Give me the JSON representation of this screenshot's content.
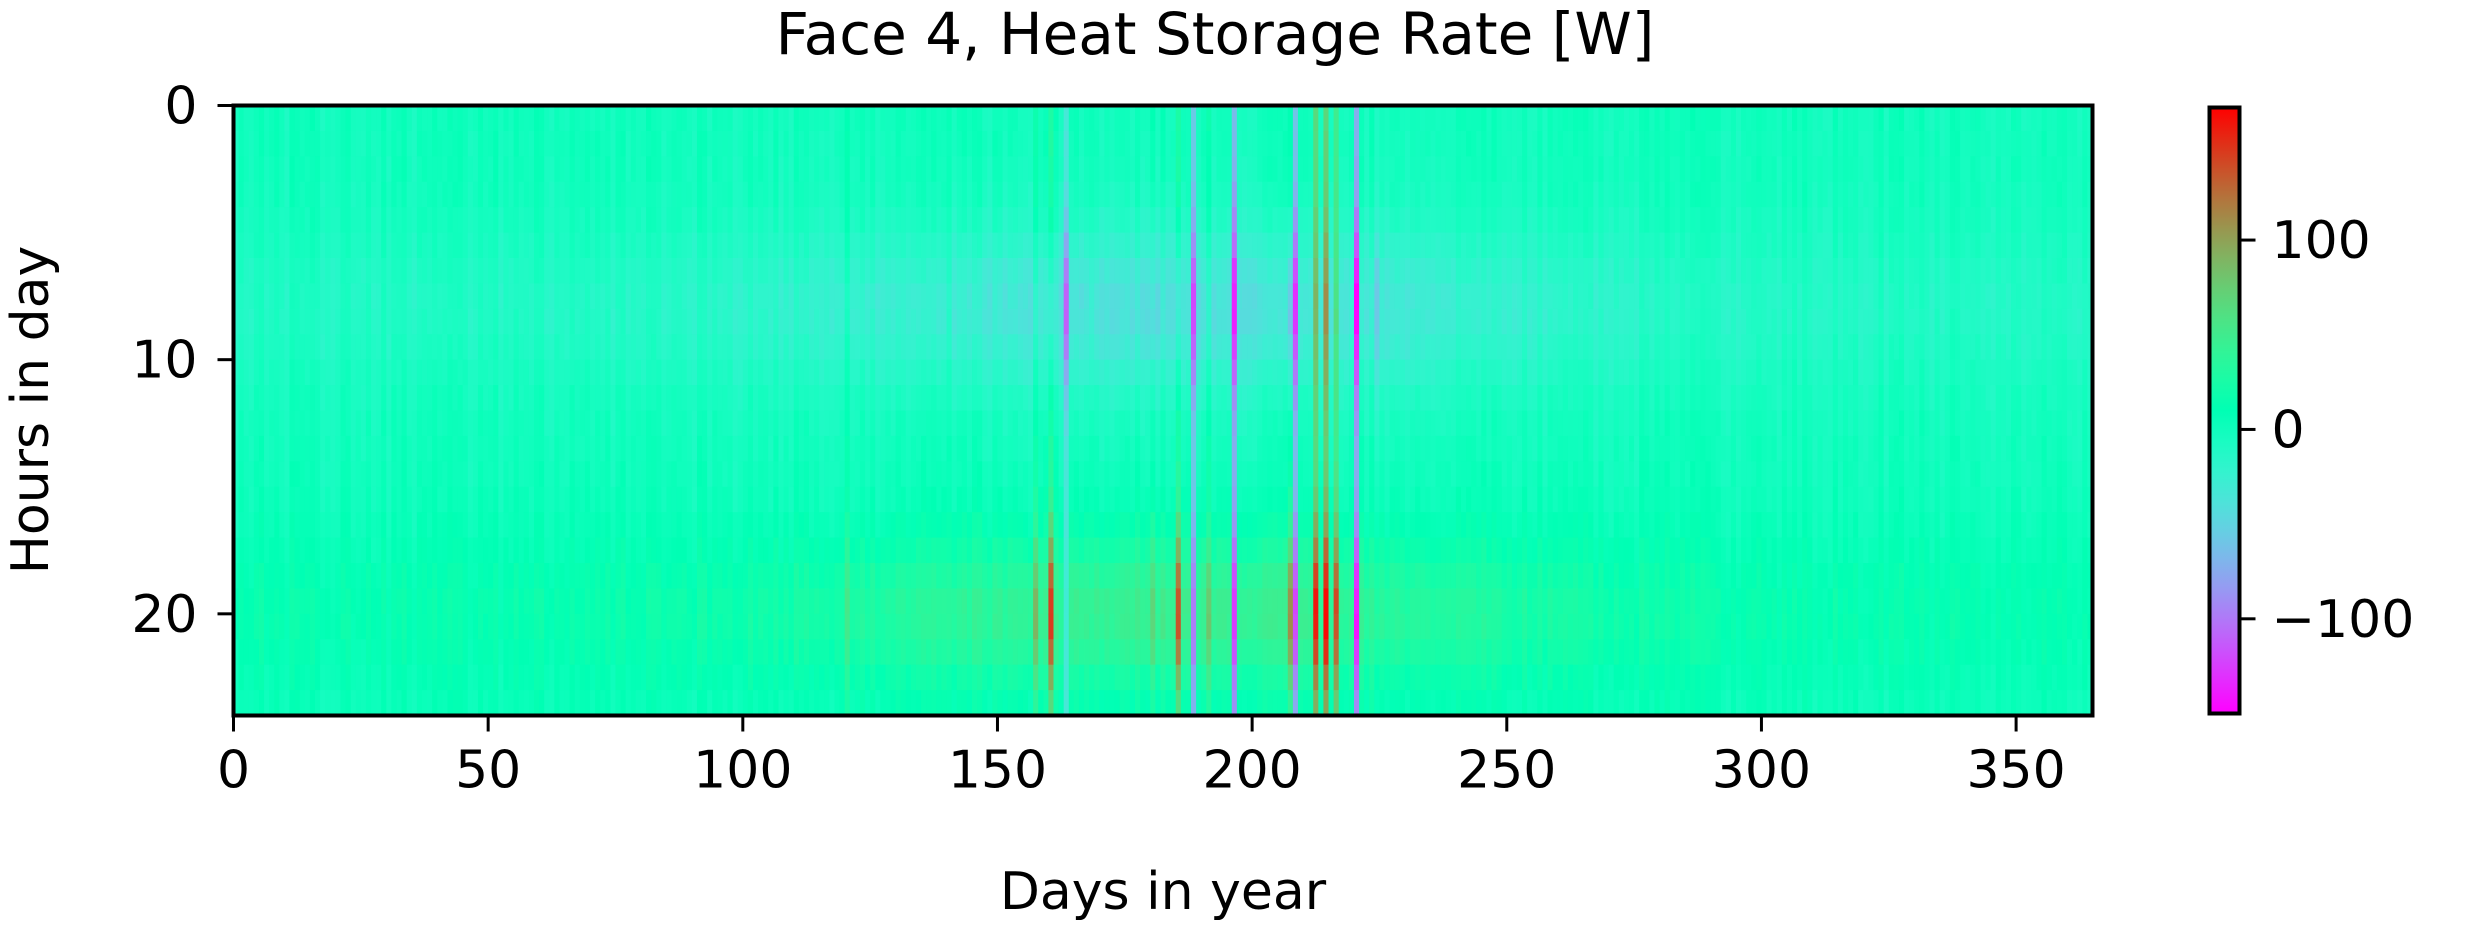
{
  "chart_data": {
    "type": "heatmap",
    "title": "Face 4, Heat Storage Rate [W]",
    "xlabel": "Days in year",
    "ylabel": "Hours in day",
    "xlim": [
      0,
      365
    ],
    "ylim": [
      0,
      24
    ],
    "y_inverted": true,
    "x_ticks": [
      0,
      50,
      100,
      150,
      200,
      250,
      300,
      350
    ],
    "y_ticks": [
      0,
      10,
      20
    ],
    "x_tick_labels": [
      "0",
      "50",
      "100",
      "150",
      "200",
      "250",
      "300",
      "350"
    ],
    "y_tick_labels": [
      "0",
      "10",
      "20"
    ],
    "colormap": "rainbow",
    "colorbar": {
      "range": [
        -150,
        170
      ],
      "ticks": [
        -100,
        0,
        100
      ],
      "tick_labels": [
        "−100",
        "0",
        "100"
      ]
    },
    "grid": false,
    "daily_events": [
      {
        "day": 120,
        "evening": 55,
        "morning": -5
      },
      {
        "day": 140,
        "evening": 35,
        "morning": -15
      },
      {
        "day": 157,
        "evening": 90,
        "morning": -20
      },
      {
        "day": 160,
        "evening": 150,
        "morning": -25
      },
      {
        "day": 163,
        "evening": -30,
        "morning": -110
      },
      {
        "day": 168,
        "evening": 40,
        "morning": -30
      },
      {
        "day": 180,
        "evening": 70,
        "morning": -40
      },
      {
        "day": 185,
        "evening": 140,
        "morning": -30
      },
      {
        "day": 188,
        "evening": -100,
        "morning": -120
      },
      {
        "day": 191,
        "evening": 80,
        "morning": -20
      },
      {
        "day": 196,
        "evening": -130,
        "morning": -140
      },
      {
        "day": 207,
        "evening": 110,
        "morning": -60
      },
      {
        "day": 208,
        "evening": -120,
        "morning": -130
      },
      {
        "day": 212,
        "evening": 160,
        "morning": 90
      },
      {
        "day": 214,
        "evening": 170,
        "morning": 110
      },
      {
        "day": 216,
        "evening": 140,
        "morning": 60
      },
      {
        "day": 220,
        "evening": -140,
        "morning": -150
      },
      {
        "day": 224,
        "evening": 30,
        "morning": -60
      },
      {
        "day": 240,
        "evening": 35,
        "morning": -20
      },
      {
        "day": 258,
        "evening": 30,
        "morning": -20
      }
    ]
  }
}
